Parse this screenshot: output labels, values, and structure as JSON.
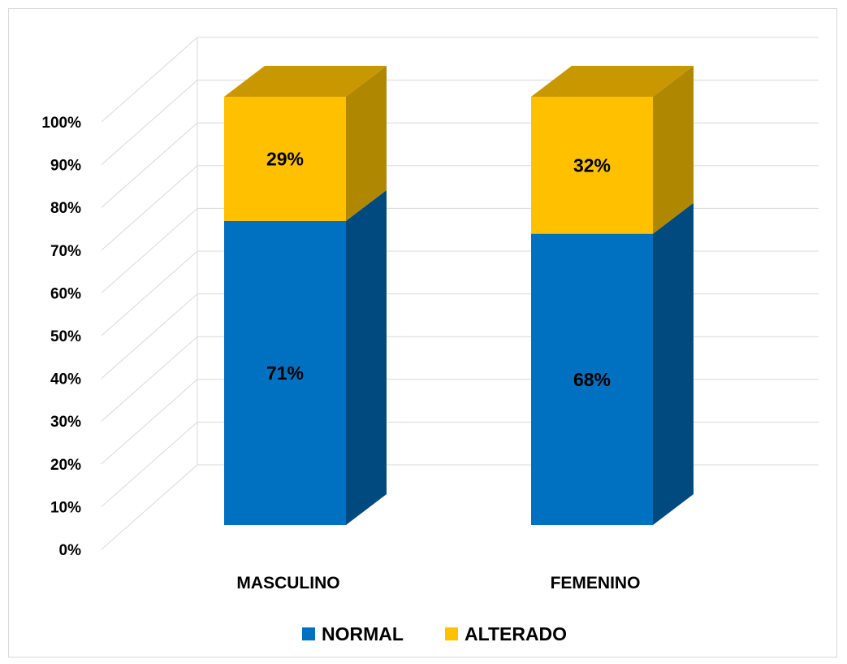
{
  "chart_data": {
    "type": "bar",
    "stacked": true,
    "percent_stacked": true,
    "three_d": true,
    "categories": [
      "MASCULINO",
      "FEMENINO"
    ],
    "series": [
      {
        "name": "NORMAL",
        "values": [
          71,
          68
        ],
        "labels": [
          "71%",
          "68%"
        ],
        "color": "#0070C0",
        "side_color": "#004A80"
      },
      {
        "name": "ALTERADO",
        "values": [
          29,
          32
        ],
        "labels": [
          "29%",
          "32%"
        ],
        "color": "#FFC000",
        "side_color": "#B08700",
        "top_color": "#C99700"
      }
    ],
    "y_ticks": [
      "0%",
      "10%",
      "20%",
      "30%",
      "40%",
      "50%",
      "60%",
      "70%",
      "80%",
      "90%",
      "100%"
    ],
    "ylim": [
      0,
      100
    ],
    "grid": true,
    "legend_position": "bottom",
    "title": "",
    "xlabel": "",
    "ylabel": ""
  }
}
